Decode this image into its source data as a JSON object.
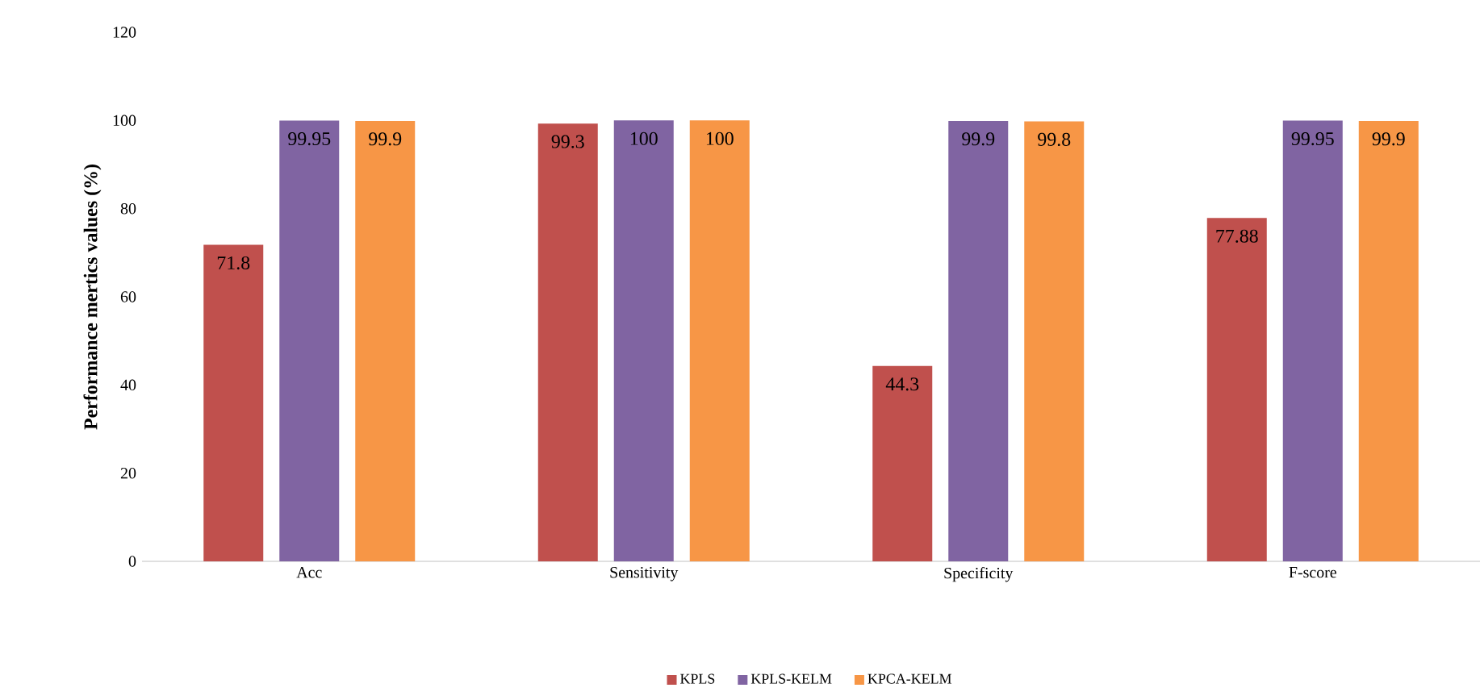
{
  "chart_data": {
    "type": "bar",
    "ylabel": "Performance mertics values (%)",
    "categories": [
      "Acc",
      "Sensitivity",
      "Specificity",
      "F-score"
    ],
    "series": [
      {
        "name": "KPLS",
        "color": "#c0504d",
        "values": [
          71.8,
          99.3,
          44.3,
          77.88
        ]
      },
      {
        "name": "KPLS-KELM",
        "color": "#8064a2",
        "values": [
          99.95,
          100,
          99.9,
          99.95
        ]
      },
      {
        "name": "KPCA-KELM",
        "color": "#f79646",
        "values": [
          99.9,
          100,
          99.8,
          99.9
        ]
      }
    ],
    "ylim": [
      0,
      120
    ],
    "yticks": [
      0,
      20,
      40,
      60,
      80,
      100,
      120
    ],
    "data_labels": true,
    "legend": "bottom"
  }
}
